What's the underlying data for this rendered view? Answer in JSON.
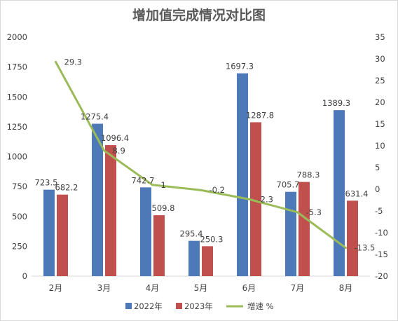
{
  "chart_data": {
    "type": "bar",
    "title": "增加值完成情况对比图",
    "categories": [
      "2月",
      "3月",
      "4月",
      "5月",
      "6月",
      "7月",
      "8月"
    ],
    "series": [
      {
        "name": "2022年",
        "type": "bar",
        "axis": "left",
        "color": "#4e79b8",
        "values": [
          723.5,
          1275.4,
          742.7,
          295.4,
          1697.3,
          705.7,
          1389.3
        ],
        "labels": [
          "723.5",
          "1275.4",
          "742.7",
          "295.4",
          "1697.3",
          "705.7",
          "1389.3"
        ]
      },
      {
        "name": "2023年",
        "type": "bar",
        "axis": "left",
        "color": "#c0504d",
        "values": [
          682.2,
          1096.4,
          509.8,
          250.3,
          1287.8,
          788.3,
          631.4
        ],
        "labels": [
          "682.2",
          "1096.4",
          "509.8",
          "250.3",
          "1287.8",
          "788.3",
          "631.4"
        ]
      },
      {
        "name": "增速 %",
        "type": "line",
        "axis": "right",
        "color": "#9bbb59",
        "values": [
          29.3,
          8.9,
          1,
          -0.2,
          -2.3,
          -5.3,
          -13.5
        ],
        "labels": [
          "29.3",
          "8.9",
          "1",
          "-0.2",
          "-2.3",
          "-5.3",
          "-13.5"
        ]
      }
    ],
    "y_left": {
      "min": 0,
      "max": 2000,
      "ticks": [
        "0",
        "250",
        "500",
        "750",
        "1000",
        "1250",
        "1500",
        "1750",
        "2000"
      ]
    },
    "y_right": {
      "min": -20,
      "max": 35,
      "ticks": [
        "-20",
        "-15",
        "-10",
        "-5",
        "0",
        "5",
        "10",
        "15",
        "20",
        "25",
        "30",
        "35"
      ]
    },
    "grid": false,
    "legend_position": "bottom"
  }
}
